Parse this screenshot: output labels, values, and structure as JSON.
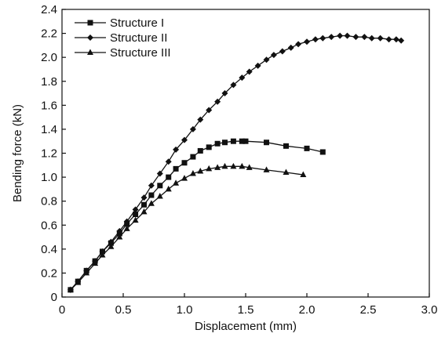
{
  "chart_data": {
    "type": "line",
    "title": "",
    "xlabel": "Displacement (mm)",
    "ylabel": "Bending force (kN)",
    "xlim": [
      0,
      3.0
    ],
    "ylim": [
      0,
      2.4
    ],
    "x_ticks": [
      0,
      0.5,
      1.0,
      1.5,
      2.0,
      2.5,
      3.0
    ],
    "x_tick_labels": [
      "0",
      "0.5",
      "1.0",
      "1.5",
      "2.0",
      "2.5",
      "3.0"
    ],
    "y_ticks": [
      0,
      0.2,
      0.4,
      0.6,
      0.8,
      1.0,
      1.2,
      1.4,
      1.6,
      1.8,
      2.0,
      2.2,
      2.4
    ],
    "y_tick_labels": [
      "0",
      "0.2",
      "0.4",
      "0.6",
      "0.8",
      "1.0",
      "1.2",
      "1.4",
      "1.6",
      "1.8",
      "2.0",
      "2.2",
      "2.4"
    ],
    "grid": false,
    "legend_position": "top-left",
    "line_color": "#111111",
    "series": [
      {
        "name": "Structure I",
        "marker": "square",
        "x": [
          0.07,
          0.13,
          0.2,
          0.27,
          0.33,
          0.4,
          0.47,
          0.53,
          0.6,
          0.67,
          0.73,
          0.8,
          0.87,
          0.93,
          1.0,
          1.07,
          1.13,
          1.2,
          1.27,
          1.33,
          1.4,
          1.47,
          1.5,
          1.67,
          1.83,
          2.0,
          2.13
        ],
        "y": [
          0.06,
          0.13,
          0.22,
          0.3,
          0.38,
          0.45,
          0.53,
          0.61,
          0.69,
          0.77,
          0.85,
          0.93,
          1.0,
          1.07,
          1.12,
          1.17,
          1.22,
          1.25,
          1.28,
          1.29,
          1.3,
          1.3,
          1.3,
          1.29,
          1.26,
          1.24,
          1.21
        ]
      },
      {
        "name": "Structure II",
        "marker": "circle",
        "x": [
          0.07,
          0.13,
          0.2,
          0.27,
          0.33,
          0.4,
          0.47,
          0.53,
          0.6,
          0.67,
          0.73,
          0.8,
          0.87,
          0.93,
          1.0,
          1.07,
          1.13,
          1.2,
          1.27,
          1.33,
          1.4,
          1.47,
          1.53,
          1.6,
          1.67,
          1.73,
          1.8,
          1.87,
          1.93,
          2.0,
          2.07,
          2.13,
          2.2,
          2.27,
          2.33,
          2.4,
          2.47,
          2.53,
          2.6,
          2.67,
          2.73,
          2.77
        ],
        "y": [
          0.06,
          0.13,
          0.22,
          0.3,
          0.38,
          0.46,
          0.55,
          0.63,
          0.73,
          0.83,
          0.93,
          1.03,
          1.13,
          1.23,
          1.31,
          1.4,
          1.48,
          1.56,
          1.63,
          1.7,
          1.77,
          1.83,
          1.88,
          1.93,
          1.98,
          2.02,
          2.05,
          2.08,
          2.11,
          2.13,
          2.15,
          2.16,
          2.17,
          2.18,
          2.18,
          2.17,
          2.17,
          2.16,
          2.16,
          2.15,
          2.15,
          2.14
        ]
      },
      {
        "name": "Structure III",
        "marker": "triangle",
        "x": [
          0.07,
          0.13,
          0.2,
          0.27,
          0.33,
          0.4,
          0.47,
          0.53,
          0.6,
          0.67,
          0.73,
          0.8,
          0.87,
          0.93,
          1.0,
          1.07,
          1.13,
          1.2,
          1.27,
          1.33,
          1.4,
          1.47,
          1.53,
          1.67,
          1.83,
          1.97
        ],
        "y": [
          0.06,
          0.12,
          0.2,
          0.28,
          0.35,
          0.42,
          0.5,
          0.57,
          0.64,
          0.71,
          0.78,
          0.84,
          0.9,
          0.95,
          0.99,
          1.03,
          1.05,
          1.07,
          1.08,
          1.09,
          1.09,
          1.09,
          1.08,
          1.06,
          1.04,
          1.02
        ]
      }
    ]
  }
}
